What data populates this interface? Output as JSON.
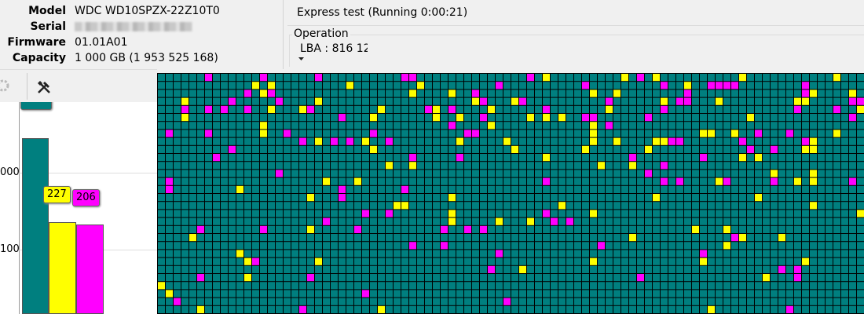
{
  "info": {
    "rows": [
      {
        "label": "Model",
        "value": "WDC WD10SPZX-22Z10T0"
      },
      {
        "label": "Serial"
      },
      {
        "label": "Firmware",
        "value": "01.01A01"
      },
      {
        "label": "Capacity",
        "value": "1 000 GB (1 953 525 168)"
      }
    ]
  },
  "status": "Express test (Running 0:00:21)",
  "operation": {
    "title": "Operation",
    "lba": "LBA : 816 12"
  },
  "histogram": {
    "axis_labels": [
      "000",
      "100"
    ],
    "bar_labels": [
      "227",
      "206"
    ]
  }
}
